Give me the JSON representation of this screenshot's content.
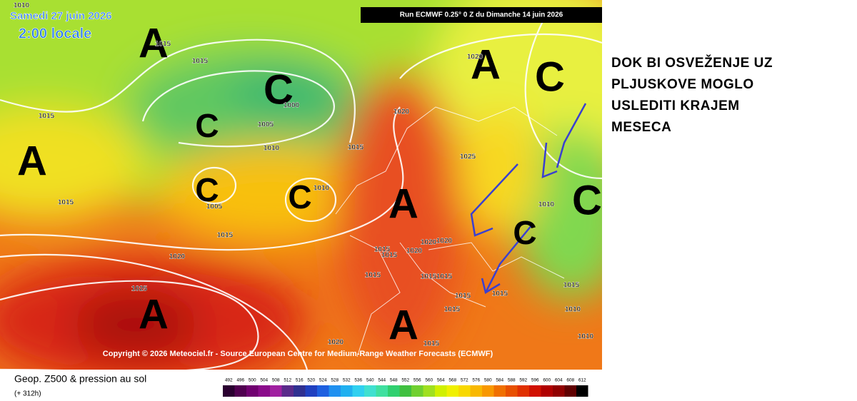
{
  "header": {
    "date": "Samedi 27 juin 2026",
    "time": "2:00 locale",
    "run": "Run ECMWF 0.25° 0 Z du Dimanche 14 juin 2026"
  },
  "map": {
    "centers": [
      "A",
      "A",
      "A",
      "C",
      "C",
      "C",
      "C",
      "C",
      "A",
      "C",
      "C",
      "A",
      "A"
    ],
    "isobar_labels": [
      "1010",
      "1015",
      "1015",
      "1015",
      "1005",
      "1000",
      "1010",
      "1015",
      "1005",
      "1010",
      "1015",
      "1015",
      "1020",
      "1025",
      "1020",
      "1020",
      "1025",
      "1015",
      "1015",
      "1020",
      "1020",
      "1020",
      "1015",
      "1015",
      "1015",
      "1015",
      "1015",
      "1015",
      "1010",
      "1015",
      "1010",
      "1010",
      "1020",
      "1015"
    ],
    "copyright": "Copyright © 2026 Meteociel.fr - Source European Centre for Medium-Range Weather Forecasts (ECMWF)"
  },
  "legend": {
    "title": "Geop. Z500 & pression au sol",
    "lead": "(+ 312h)",
    "levels": [
      492,
      496,
      500,
      504,
      508,
      512,
      516,
      520,
      524,
      528,
      532,
      536,
      540,
      544,
      548,
      552,
      556,
      560,
      564,
      568,
      572,
      576,
      580,
      584,
      588,
      592,
      596,
      600,
      604,
      608,
      612
    ],
    "colors": [
      "#2a0030",
      "#500050",
      "#700070",
      "#8a0a8a",
      "#a020a0",
      "#5a2a8a",
      "#303090",
      "#2040c0",
      "#1e60e0",
      "#2090f0",
      "#20b0f0",
      "#30d0f0",
      "#40e0d0",
      "#40e0a0",
      "#30d070",
      "#40c040",
      "#70d030",
      "#a0e020",
      "#d0f000",
      "#f0f000",
      "#f8d800",
      "#f8b800",
      "#f89800",
      "#f07000",
      "#e85000",
      "#e03000",
      "#d01000",
      "#b00000",
      "#900000",
      "#600000",
      "#000000"
    ]
  },
  "note": {
    "lines": [
      "DOK BI OSVEŽENJE UZ",
      "PLJUSKOVE MOGLO",
      "USLEDITI KRAJEM",
      "MESECA"
    ]
  }
}
